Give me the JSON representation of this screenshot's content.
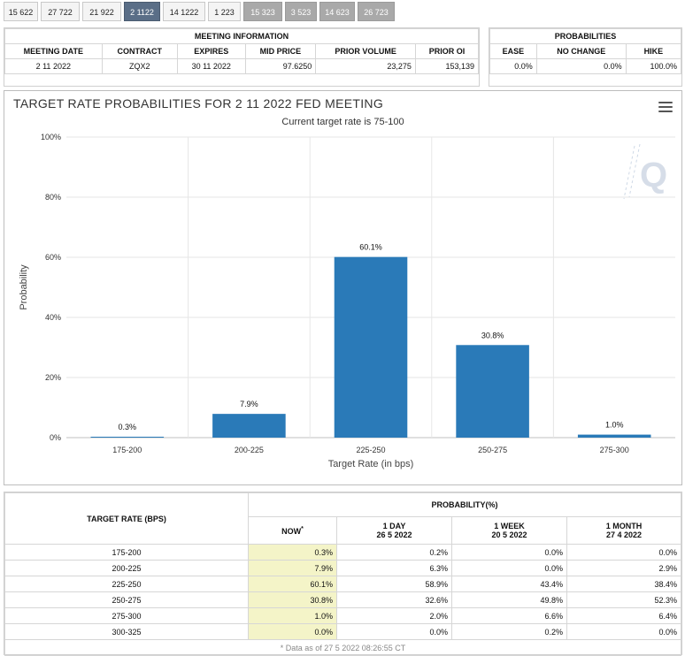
{
  "tabs": [
    {
      "label": "15 622",
      "state": "normal"
    },
    {
      "label": "27 722",
      "state": "normal"
    },
    {
      "label": "21 922",
      "state": "normal"
    },
    {
      "label": "2 1122",
      "state": "active"
    },
    {
      "label": "14 1222",
      "state": "normal"
    },
    {
      "label": "1 223",
      "state": "normal"
    },
    {
      "label": "15 323",
      "state": "dim"
    },
    {
      "label": "3 523",
      "state": "dim"
    },
    {
      "label": "14 623",
      "state": "dim"
    },
    {
      "label": "26 723",
      "state": "dim"
    }
  ],
  "meeting": {
    "title": "MEETING INFORMATION",
    "headers": [
      "MEETING DATE",
      "CONTRACT",
      "EXPIRES",
      "MID PRICE",
      "PRIOR VOLUME",
      "PRIOR OI"
    ],
    "values": [
      "2 11 2022",
      "ZQX2",
      "30 11 2022",
      "97.6250",
      "23,275",
      "153,139"
    ]
  },
  "probabilities": {
    "title": "PROBABILITIES",
    "headers": [
      "EASE",
      "NO CHANGE",
      "HIKE"
    ],
    "values": [
      "0.0%",
      "0.0%",
      "100.0%"
    ]
  },
  "chart": {
    "title": "TARGET RATE PROBABILITIES FOR 2 11 2022 FED MEETING",
    "subtitle": "Current target rate is 75-100",
    "watermark": "Q"
  },
  "chart_data": {
    "type": "bar",
    "categories": [
      "175-200",
      "200-225",
      "225-250",
      "250-275",
      "275-300"
    ],
    "values": [
      0.3,
      7.9,
      60.1,
      30.8,
      1.0
    ],
    "data_labels": [
      "0.3%",
      "7.9%",
      "60.1%",
      "30.8%",
      "1.0%"
    ],
    "ylabel": "Probability",
    "xlabel": "Target Rate (in bps)",
    "ylim": [
      0,
      100
    ],
    "yticks": [
      0,
      20,
      40,
      60,
      80,
      100
    ],
    "ytick_labels": [
      "0%",
      "20%",
      "40%",
      "60%",
      "80%",
      "100%"
    ],
    "grid": true,
    "bar_color": "#2a7ab8"
  },
  "prob_table": {
    "rate_header": "TARGET RATE (BPS)",
    "group_header": "PROBABILITY(%)",
    "cols": [
      {
        "label": "NOW",
        "sup": "*",
        "date": ""
      },
      {
        "label": "1 DAY",
        "date": "26 5 2022"
      },
      {
        "label": "1 WEEK",
        "date": "20 5 2022"
      },
      {
        "label": "1 MONTH",
        "date": "27 4 2022"
      }
    ],
    "rows": [
      {
        "rate": "175-200",
        "now": "0.3%",
        "day": "0.2%",
        "week": "0.0%",
        "month": "0.0%"
      },
      {
        "rate": "200-225",
        "now": "7.9%",
        "day": "6.3%",
        "week": "0.0%",
        "month": "2.9%"
      },
      {
        "rate": "225-250",
        "now": "60.1%",
        "day": "58.9%",
        "week": "43.4%",
        "month": "38.4%"
      },
      {
        "rate": "250-275",
        "now": "30.8%",
        "day": "32.6%",
        "week": "49.8%",
        "month": "52.3%"
      },
      {
        "rate": "275-300",
        "now": "1.0%",
        "day": "2.0%",
        "week": "6.6%",
        "month": "6.4%"
      },
      {
        "rate": "300-325",
        "now": "0.0%",
        "day": "0.0%",
        "week": "0.2%",
        "month": "0.0%"
      }
    ],
    "footnote": "* Data as of 27 5 2022 08:26:55 CT"
  }
}
